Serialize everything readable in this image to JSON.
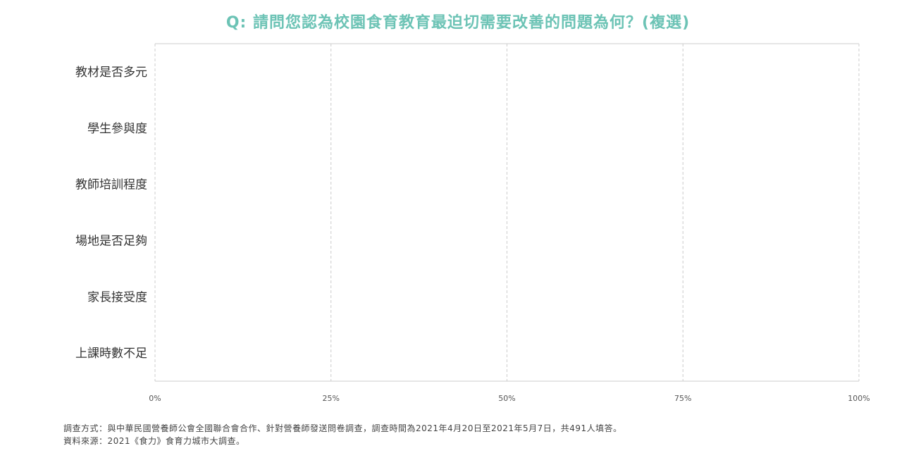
{
  "title": "Q: 請問您認為校園食育教育最迫切需要改善的問題為何？(複選)",
  "colors": {
    "title": "#6cc3b5",
    "grid": "#cccccc",
    "axis_text": "#555555",
    "label_text": "#333333"
  },
  "chart_data": {
    "type": "bar",
    "orientation": "horizontal",
    "title": "Q: 請問您認為校園食育教育最迫切需要改善的問題為何？(複選)",
    "categories": [
      "教材是否多元",
      "學生參與度",
      "教師培訓程度",
      "場地是否足夠",
      "家長接受度",
      "上課時數不足"
    ],
    "values": [
      null,
      null,
      null,
      null,
      null,
      null
    ],
    "xlim": [
      0,
      100
    ],
    "x_ticks": [
      0,
      25,
      50,
      75,
      100
    ],
    "x_tick_labels": [
      "0%",
      "25%",
      "50%",
      "75%",
      "100%"
    ],
    "grid": true,
    "legend": "none"
  },
  "notes": {
    "method": "調查方式：與中華民國營養師公會全國聯合會合作、針對營養師發送問卷調查，調查時間為2021年4月20日至2021年5月7日，共491人填答。",
    "source": "資料來源：2021《食力》食育力城市大調查。"
  }
}
